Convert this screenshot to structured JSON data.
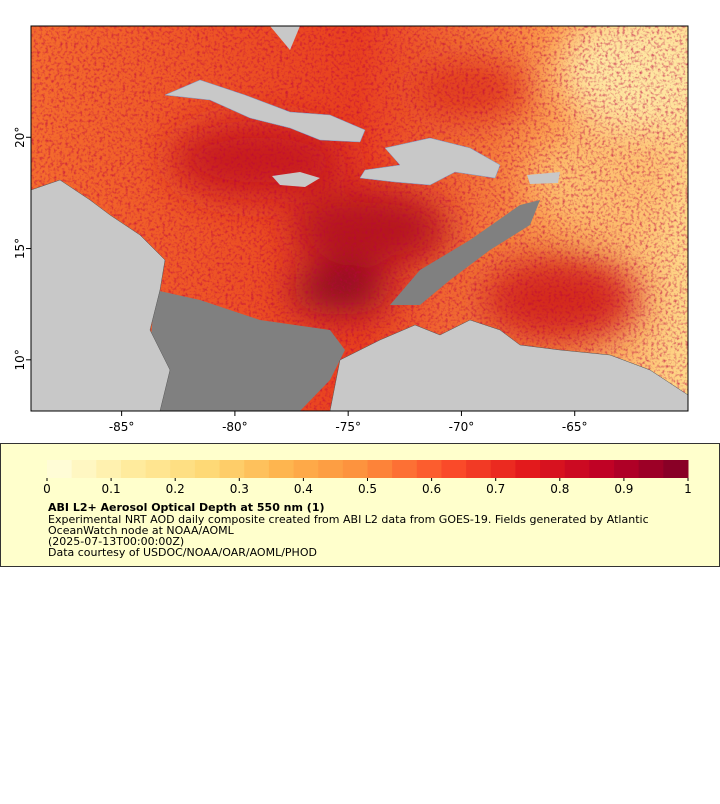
{
  "map": {
    "xlim": [
      -89,
      -60
    ],
    "ylim": [
      7.7,
      25
    ],
    "xticks": [
      {
        "value": -85,
        "label": "-85°"
      },
      {
        "value": -80,
        "label": "-80°"
      },
      {
        "value": -75,
        "label": "-75°"
      },
      {
        "value": -70,
        "label": "-70°"
      },
      {
        "value": -65,
        "label": "-65°"
      }
    ],
    "yticks": [
      {
        "value": 10,
        "label": "10°"
      },
      {
        "value": 15,
        "label": "15°"
      },
      {
        "value": 20,
        "label": "20°"
      }
    ]
  },
  "colorbar": {
    "range": [
      0,
      1
    ],
    "ticks": [
      0,
      0.1,
      0.2,
      0.3,
      0.4,
      0.5,
      0.6,
      0.7,
      0.8,
      0.9,
      1
    ],
    "colormap": [
      "#ffffe0",
      "#ffeda0",
      "#fed976",
      "#feb24c",
      "#fd8d3c",
      "#fc4e2a",
      "#e31a1c",
      "#bd0026",
      "#800026"
    ],
    "title": "ABI L2+ Aerosol Optical Depth at 550 nm (1)",
    "lines": [
      "Experimental NRT AOD daily composite created from ABI L2 data from GOES-19. Fields generated by Atlantic",
      "OceanWatch node at NOAA/AOML",
      "(2025-07-13T00:00:00Z)",
      "Data courtesy of USDOC/NOAA/OAR/AOML/PHOD"
    ]
  }
}
